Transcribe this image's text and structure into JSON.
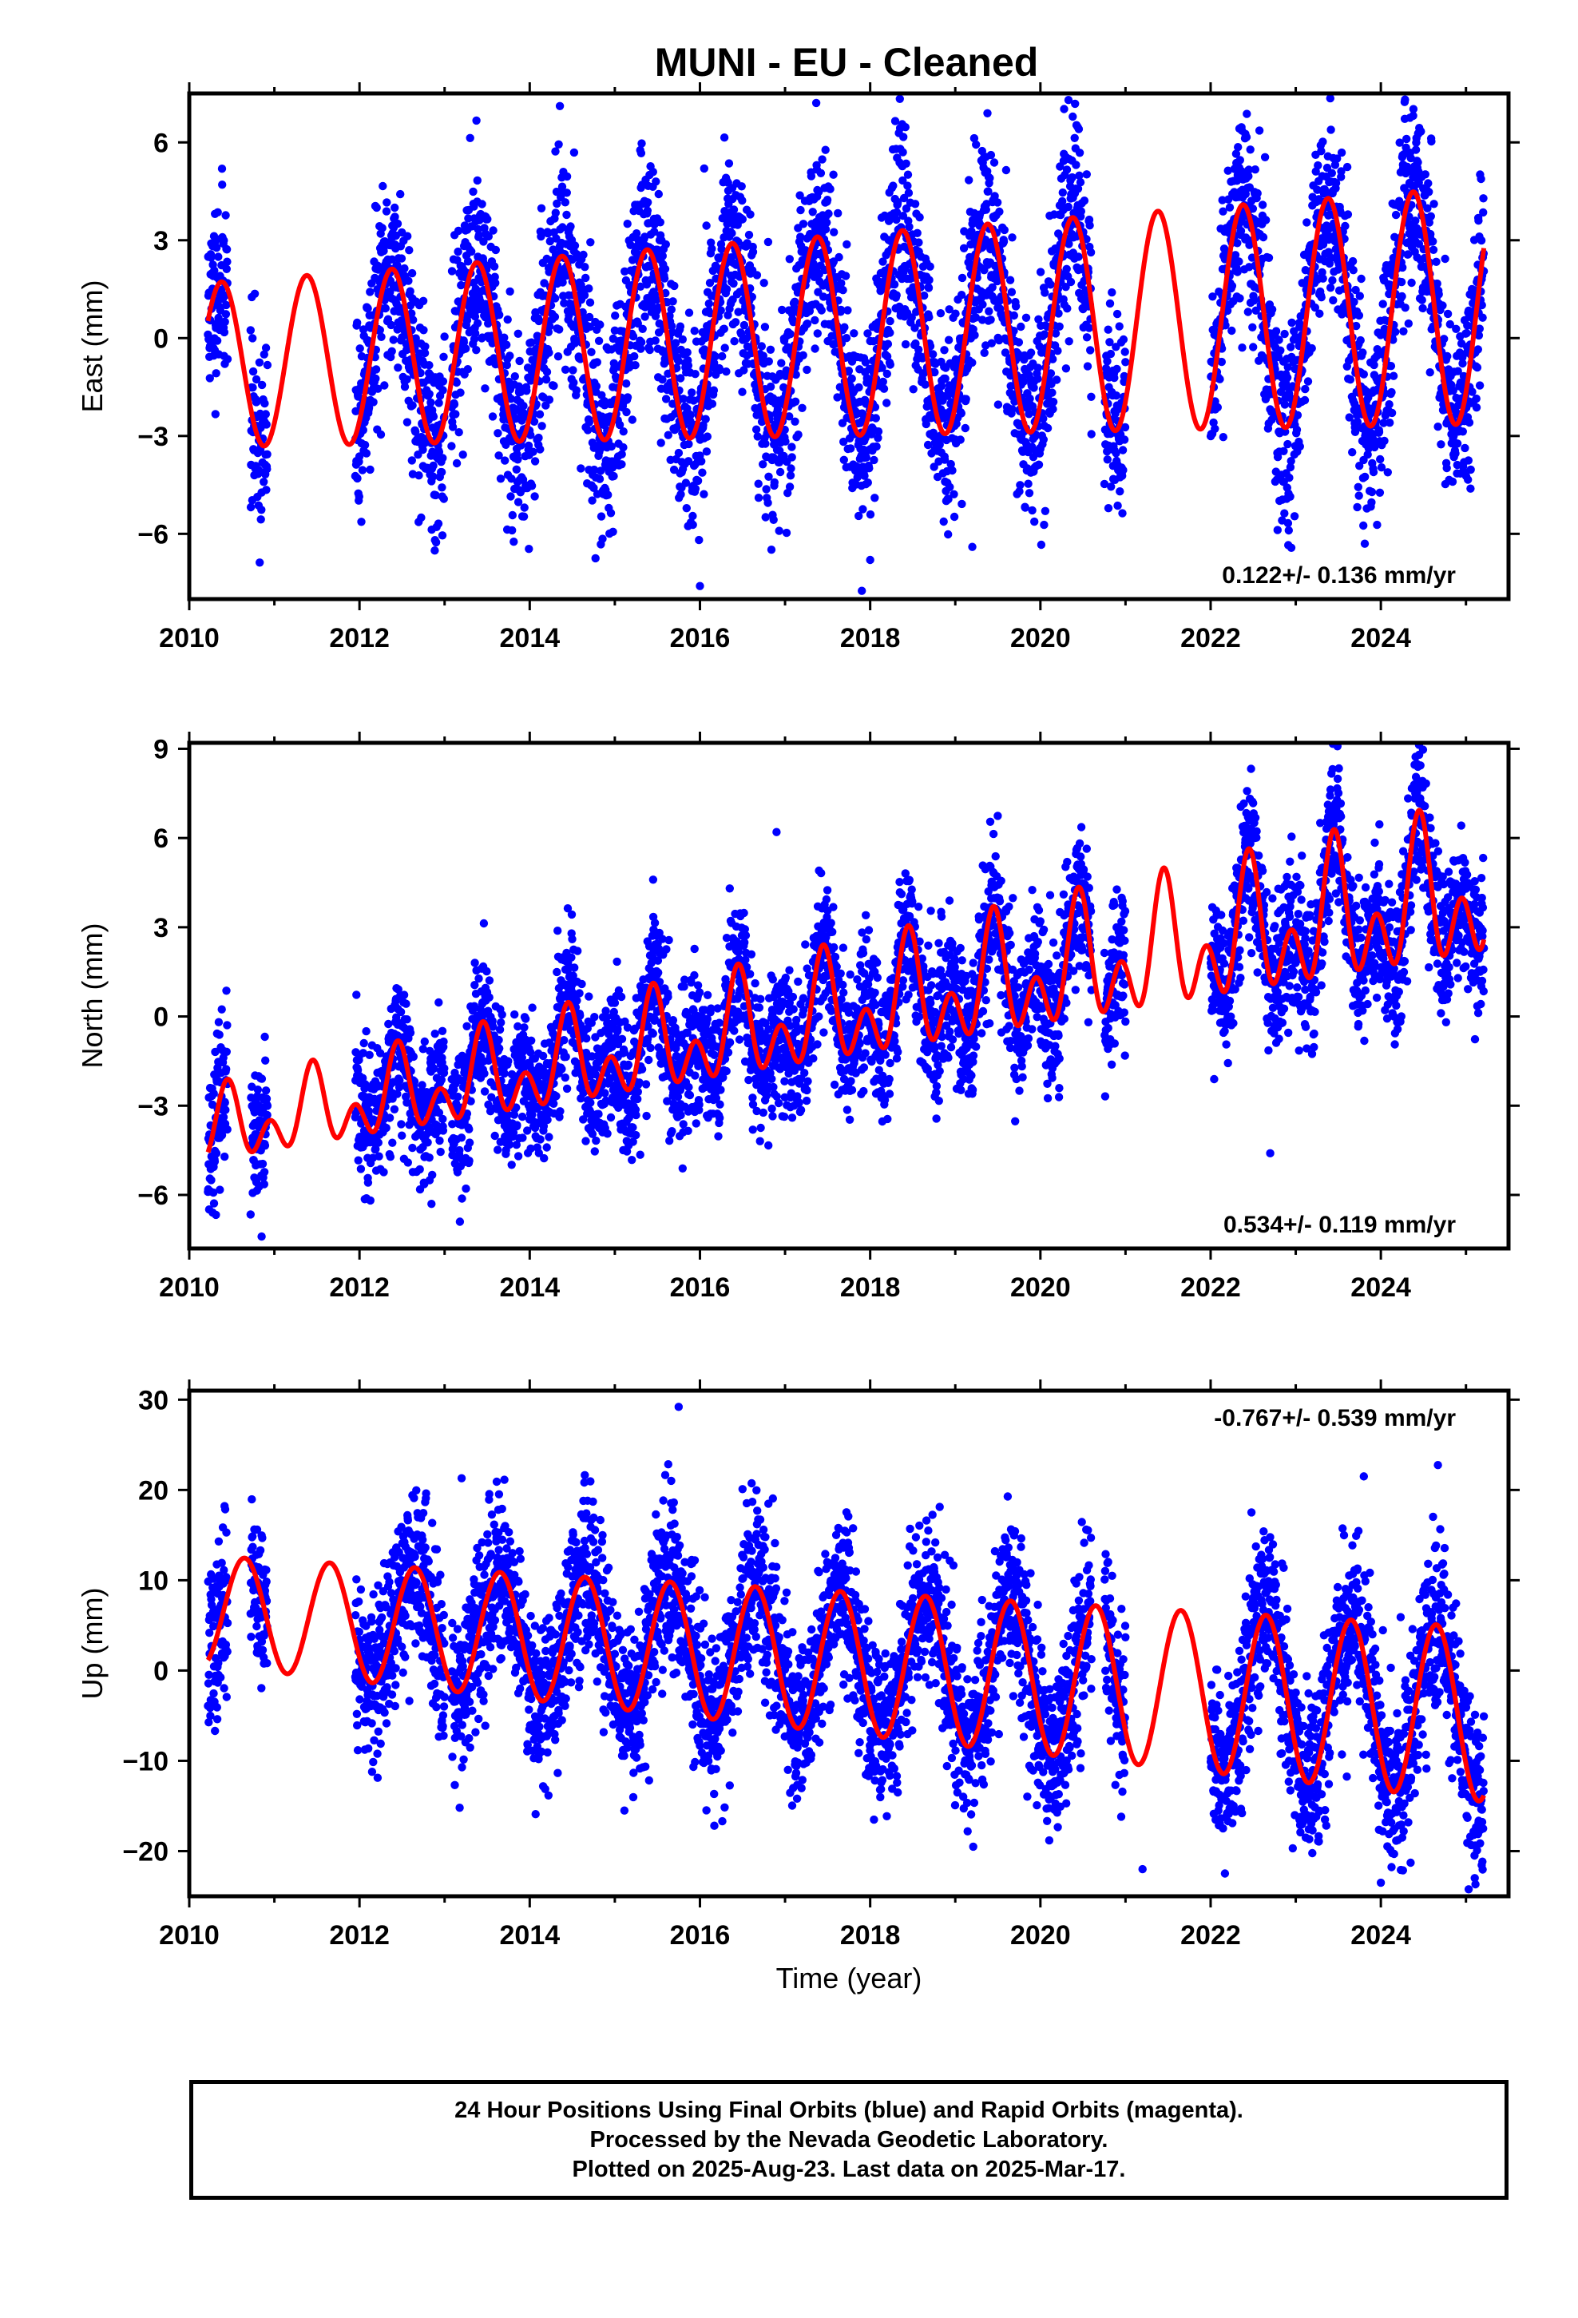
{
  "figure": {
    "title": "MUNI  - EU - Cleaned",
    "xlabel": "Time (year)",
    "footer": [
      "24 Hour Positions Using Final Orbits (blue) and Rapid Orbits (magenta).",
      "Processed by the Nevada Geodetic Laboratory.",
      "Plotted on 2025-Aug-23. Last data on 2025-Mar-17."
    ],
    "colors": {
      "points": "#0000ff",
      "fit": "#ff0000",
      "frame": "#000000"
    }
  },
  "chart_data": [
    {
      "type": "scatter",
      "component": "east",
      "ylabel": "East (mm)",
      "rate_label": "0.122+/- 0.136 mm/yr",
      "rate_label_position": "bottom-right",
      "xlim": [
        2010,
        2025.5
      ],
      "ylim": [
        -8,
        7.5
      ],
      "xticks": [
        2010,
        2012,
        2014,
        2016,
        2018,
        2020,
        2022,
        2024
      ],
      "yticks": [
        -6,
        -3,
        0,
        3,
        6
      ],
      "model": {
        "offset": -0.85,
        "trend": 0.122,
        "t_ref": 2010.0,
        "annual_amp": 2.5,
        "annual_peak": 2010.38,
        "semiannual_amp": 0.0,
        "semiannual_peak": 2010.2,
        "amp_growth": 0.03
      },
      "scatter": {
        "noise": 1.5,
        "seed": 11
      },
      "gaps": [
        [
          2010.45,
          2010.72
        ],
        [
          2010.92,
          2011.95
        ],
        [
          2013.0,
          2013.08
        ],
        [
          2020.6,
          2020.75
        ],
        [
          2021.0,
          2022.0
        ]
      ],
      "outliers": [
        [
          2020.33,
          7.3
        ],
        [
          2016.05,
          5.2
        ],
        [
          2018.0,
          -6.8
        ],
        [
          2016.0,
          -7.6
        ],
        [
          2019.2,
          -6.4
        ]
      ]
    },
    {
      "type": "scatter",
      "component": "north",
      "ylabel": "North (mm)",
      "rate_label": "0.534+/- 0.119 mm/yr",
      "rate_label_position": "bottom-right",
      "xlim": [
        2010,
        2025.5
      ],
      "ylim": [
        -7.8,
        9.2
      ],
      "xticks": [
        2010,
        2012,
        2014,
        2016,
        2018,
        2020,
        2022,
        2024
      ],
      "yticks": [
        -6,
        -3,
        0,
        3,
        6,
        9
      ],
      "model": {
        "offset": -4.0,
        "trend": 0.534,
        "t_ref": 2010.0,
        "annual_amp": 0.8,
        "annual_peak": 2010.45,
        "semiannual_amp": 0.8,
        "semiannual_peak": 2010.45,
        "amp_growth": 0.07
      },
      "scatter": {
        "noise": 1.2,
        "seed": 23
      },
      "gaps": [
        [
          2010.45,
          2010.72
        ],
        [
          2010.92,
          2011.95
        ],
        [
          2013.0,
          2013.08
        ],
        [
          2020.6,
          2020.75
        ],
        [
          2021.0,
          2022.0
        ]
      ],
      "outliers": [
        [
          2024.45,
          8.8
        ],
        [
          2010.85,
          -7.4
        ],
        [
          2015.45,
          4.6
        ],
        [
          2016.9,
          6.2
        ],
        [
          2022.7,
          -4.6
        ]
      ]
    },
    {
      "type": "scatter",
      "component": "up",
      "ylabel": "Up (mm)",
      "rate_label": "-0.767+/- 0.539 mm/yr",
      "rate_label_position": "top-right",
      "xlim": [
        2010,
        2025.5
      ],
      "ylim": [
        -25,
        31
      ],
      "xticks": [
        2010,
        2012,
        2014,
        2016,
        2018,
        2020,
        2022,
        2024
      ],
      "yticks": [
        -20,
        -10,
        0,
        10,
        20,
        30
      ],
      "model": {
        "offset": 6.8,
        "trend": -0.767,
        "t_ref": 2010.0,
        "annual_amp": 6.0,
        "annual_peak": 2010.65,
        "semiannual_amp": 0.0,
        "semiannual_peak": 2010.3,
        "amp_growth": 0.04
      },
      "scatter": {
        "noise": 4.6,
        "seed": 37
      },
      "gaps": [
        [
          2010.45,
          2010.72
        ],
        [
          2010.92,
          2011.95
        ],
        [
          2013.0,
          2013.08
        ],
        [
          2020.6,
          2020.75
        ],
        [
          2021.0,
          2022.0
        ]
      ],
      "outliers": [
        [
          2015.75,
          29.2
        ],
        [
          2024.0,
          -23.5
        ],
        [
          2021.2,
          -22.0
        ],
        [
          2013.2,
          21.3
        ],
        [
          2023.8,
          21.5
        ]
      ]
    }
  ]
}
